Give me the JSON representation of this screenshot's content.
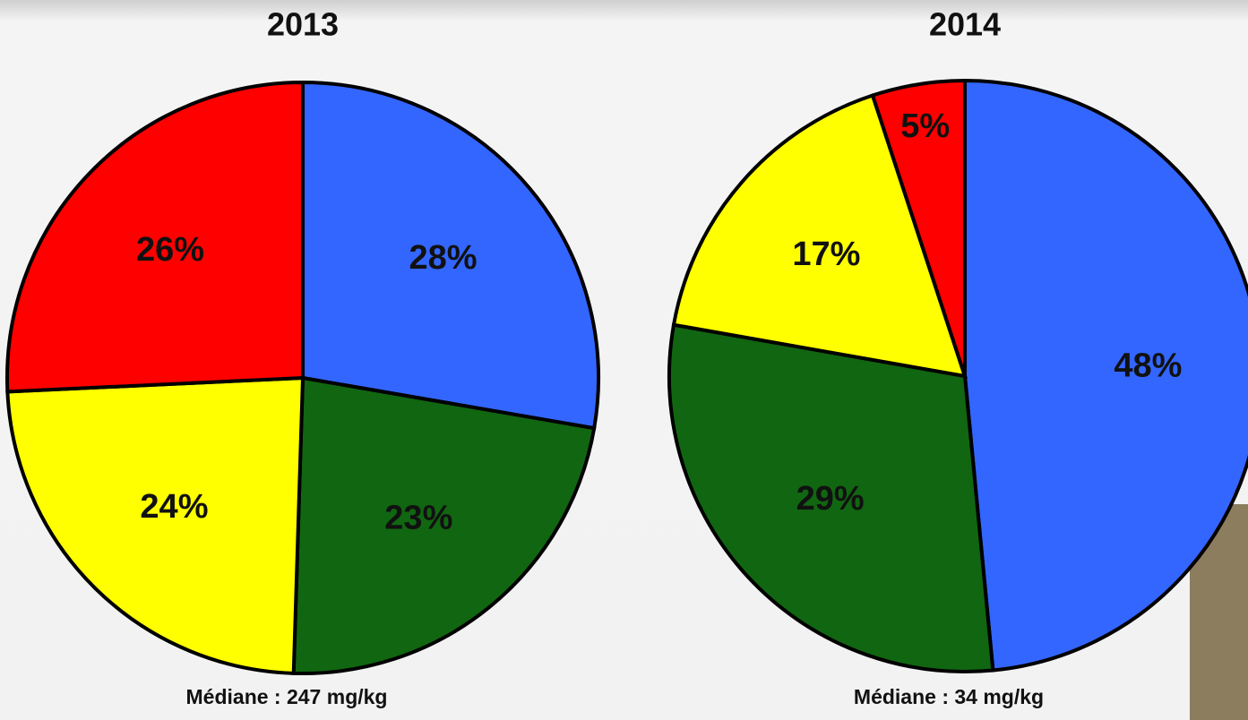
{
  "chart_data": [
    {
      "type": "pie",
      "title": "2013",
      "subtitle": "Médiane : 247 mg/kg",
      "values": [
        28,
        23,
        24,
        26
      ],
      "value_labels": [
        "28%",
        "23%",
        "24%",
        "26%"
      ],
      "colors": [
        "#3366ff",
        "#116611",
        "#ffff00",
        "#ff0000"
      ]
    },
    {
      "type": "pie",
      "title": "2014",
      "subtitle": "Médiane : 34 mg/kg",
      "values": [
        48,
        29,
        17,
        5
      ],
      "value_labels": [
        "48%",
        "29%",
        "17%",
        "5%"
      ],
      "colors": [
        "#3366ff",
        "#116611",
        "#ffff00",
        "#ff0000"
      ]
    }
  ]
}
